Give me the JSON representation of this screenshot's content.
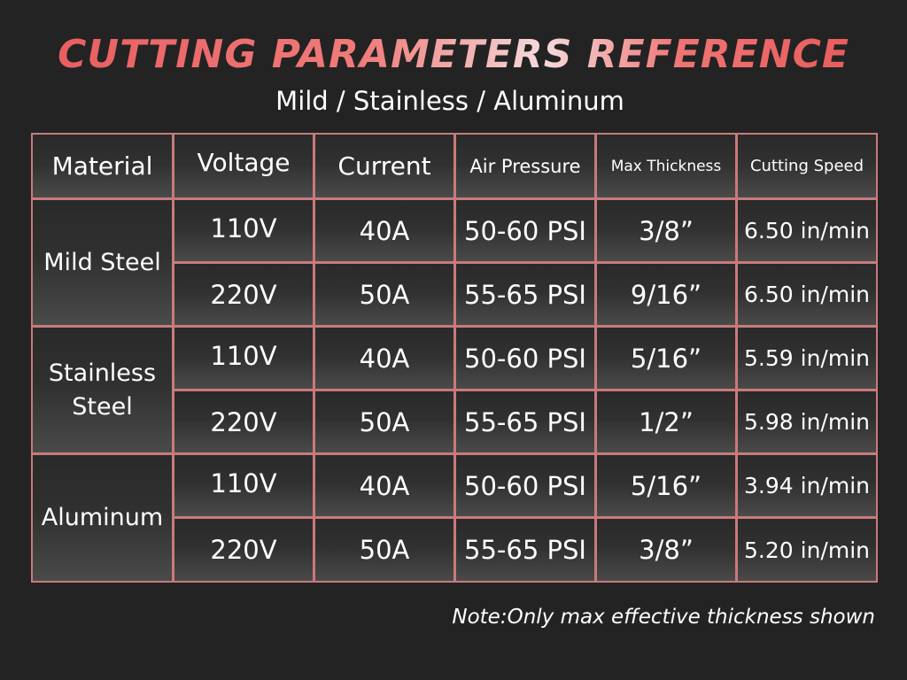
{
  "title": "CUTTING PARAMETERS REFERENCE",
  "subtitle": "Mild / Stainless / Aluminum",
  "headers": [
    "Material",
    "Voltage",
    "Current",
    "Air Pressure",
    "Max Thickness",
    "Cutting Speed"
  ],
  "rows": [
    {
      "material": "Mild Steel",
      "voltage": "110V",
      "current": "40A",
      "pressure": "50-60 PSI",
      "thickness": "3/8”",
      "speed": "6.50 in/min"
    },
    {
      "voltage": "220V",
      "current": "50A",
      "pressure": "55-65 PSI",
      "thickness": "9/16”",
      "speed": "6.50 in/min"
    },
    {
      "material_lines": [
        "Stainless",
        "Steel"
      ],
      "voltage": "110V",
      "current": "40A",
      "pressure": "50-60 PSI",
      "thickness": "5/16”",
      "speed": "5.59 in/min"
    },
    {
      "voltage": "220V",
      "current": "50A",
      "pressure": "55-65 PSI",
      "thickness": "1/2”",
      "speed": "5.98 in/min"
    },
    {
      "material": "Aluminum",
      "voltage": "110V",
      "current": "40A",
      "pressure": "50-60 PSI",
      "thickness": "5/16”",
      "speed": "3.94 in/min"
    },
    {
      "voltage": "220V",
      "current": "50A",
      "pressure": "55-65 PSI",
      "thickness": "3/8”",
      "speed": "5.20 in/min"
    }
  ],
  "note": "Note:Only max effective thickness shown",
  "colors": {
    "background": "#232323",
    "border": "#c97a7a",
    "title_accent": "#e8595c"
  }
}
